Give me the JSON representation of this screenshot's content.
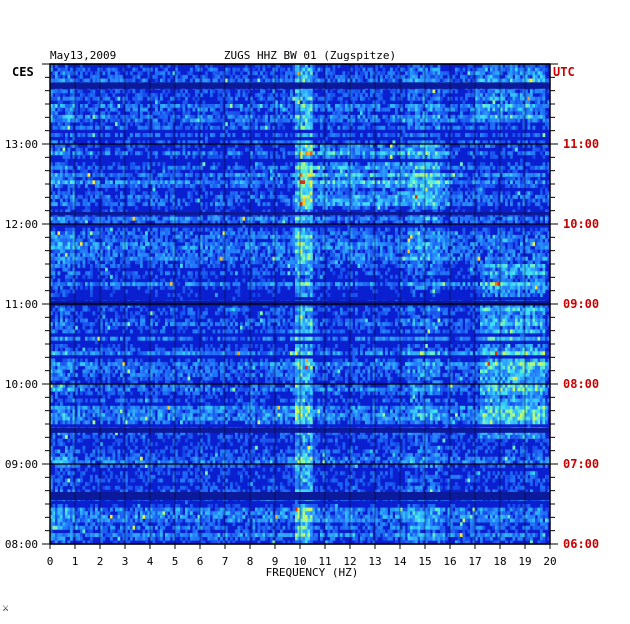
{
  "chart_data": {
    "type": "heatmap",
    "date_label": "May13,2009",
    "title": "ZUGS HHZ BW 01 (Zugspitze)",
    "left_zone": "CES",
    "right_zone": "UTC",
    "xlabel": "FREQUENCY (HZ)",
    "xlim": [
      0,
      20
    ],
    "x_ticks": [
      "0",
      "1",
      "2",
      "3",
      "4",
      "5",
      "6",
      "7",
      "8",
      "9",
      "10",
      "11",
      "12",
      "13",
      "14",
      "15",
      "16",
      "17",
      "18",
      "19",
      "20"
    ],
    "left_time_ticks": [
      "08:00",
      "09:00",
      "10:00",
      "11:00",
      "12:00",
      "13:00"
    ],
    "right_time_ticks": [
      "06:00",
      "07:00",
      "08:00",
      "09:00",
      "10:00",
      "11:00"
    ],
    "colors": {
      "axis": "#000000",
      "utc": "#cc0000",
      "background": "#0a1fcf"
    },
    "time_range_cest": [
      "08:00",
      "14:00"
    ],
    "features": [
      {
        "freq_hz": 10.2,
        "note": "persistent narrow line"
      },
      {
        "freq_hz": 15.0,
        "note": "intermittent energy"
      },
      {
        "freq_hz": 18.0,
        "note": "energy bursts near 10:00 CEST"
      }
    ]
  },
  "footer_mark": "⚔"
}
